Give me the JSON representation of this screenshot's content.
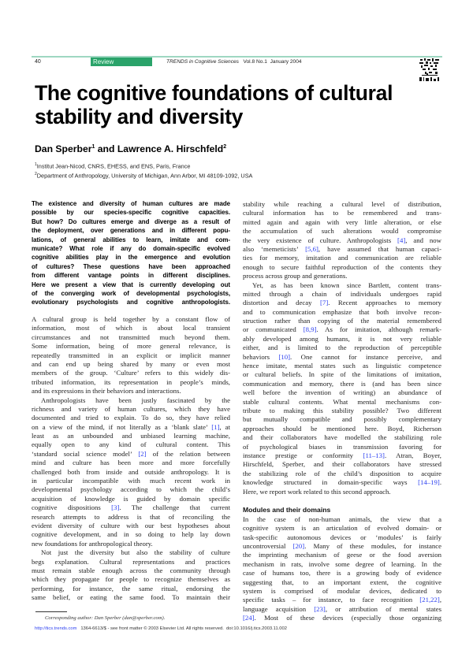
{
  "header": {
    "page_number": "40",
    "section_badge": "Review",
    "journal": "TRENDS in Cognitive Sciences",
    "issue": "Vol.8 No.1  January 2004",
    "accent_color": "#2aa36a",
    "rule_color": "#9ed7c1"
  },
  "article": {
    "title_line1": "The cognitive foundations of cultural",
    "title_line2": "stability and diversity",
    "author1": "Dan Sperber",
    "author1_mark": "1",
    "author_join": " and ",
    "author2": "Lawrence A. Hirschfeld",
    "author2_mark": "2",
    "affiliations": [
      {
        "mark": "1",
        "text": "Institut Jean-Nicod, CNRS, EHESS, and ENS, Paris, France"
      },
      {
        "mark": "2",
        "text": "Department of Anthropology, University of Michigan, Ann Arbor, MI 48109-1092, USA"
      }
    ]
  },
  "abstract": [
    "The existence and diversity of human cultures are made",
    "possible by our species-specific cognitive capacities.",
    "But how? Do cultures emerge and diverge as a result of",
    "the deployment, over generations and in different popu-",
    "lations, of general abilities to learn, imitate and com-",
    "municate? What role if any do domain-specific evolved",
    "cognitive abilities play in the emergence and evolution",
    "of cultures? These questions have been approached",
    "from different vantage points in different disciplines.",
    "Here we present a view that is currently developing out",
    "of the converging work of developmental psychologists,",
    "evolutionary psychologists and cognitive anthropologists."
  ],
  "left_column": [
    {
      "indent": false,
      "lines": [
        "A cultural group is held together by a constant flow of",
        "information, most of which is about local transient",
        "circumstances and not transmitted much beyond them.",
        "Some information, being of more general relevance, is",
        "repeatedly transmitted in an explicit or implicit manner",
        "and can end up being shared by many or even most",
        "members of the group. ‘Culture’ refers to this widely dis-",
        "tributed information, its representation in people’s minds,",
        "and its expressions in their behaviors and interactions."
      ]
    },
    {
      "indent": true,
      "lines": [
        "Anthropologists have been justly fascinated by the",
        "richness and variety of human cultures, which they have",
        "documented and tried to explain. To do so, they have relied",
        "on a view of the mind, if not literally as a ‘blank slate’ [1], at",
        "least as an unbounded and unbiased learning machine,",
        "equally open to any kind of cultural content. This",
        "‘standard social science model’ [2] of the relation between",
        "mind and culture has been more and more forcefully",
        "challenged both from inside and outside anthropology. It is",
        "in particular incompatible with much recent work in",
        "developmental psychology according to which the child’s",
        "acquisition of knowledge is guided by domain specific",
        "cognitive dispositions [3]. The challenge that current",
        "research attempts to address is that of reconciling the",
        "evident diversity of culture with our best hypotheses about",
        "cognitive development, and in so doing to help lay down",
        "new foundations for anthropological theory."
      ]
    },
    {
      "indent": true,
      "lines": [
        "Not just the diversity but also the stability of culture",
        "begs explanation. Cultural representations and practices",
        "must remain stable enough across the community through",
        "which they propagate for people to recognize themselves as",
        "performing, for instance, the same ritual, endorsing the",
        "same belief, or eating the same food. To maintain their"
      ],
      "continues": true
    }
  ],
  "right_column": [
    {
      "indent": false,
      "lines": [
        "stability while reaching a cultural level of distribution,",
        "cultural information has to be remembered and trans-",
        "mitted again and again with very little alteration, or else",
        "the accumulation of such alterations would compromise",
        "the very existence of culture. Anthropologists [4], and now",
        "also ‘memeticists’ [5,6], have assumed that human capaci-",
        "ties for memory, imitation and communication are reliable",
        "enough to secure faithful reproduction of the contents they",
        "process across group and generations."
      ]
    },
    {
      "indent": true,
      "lines": [
        "Yet, as has been known since Bartlett, content trans-",
        "mitted through a chain of individuals undergoes rapid",
        "distortion and decay [7]. Recent approaches to memory",
        "and to communication emphasize that both involve recon-",
        "struction rather than copying of the material remembered",
        "or communicated [8,9]. As for imitation, although remark-",
        "ably developed among humans, it is not very reliable",
        "either, and is limited to the reproduction of perceptible",
        "behaviors [10]. One cannot for instance perceive, and",
        "hence imitate, mental states such as linguistic competence",
        "or cultural beliefs. In spite of the limitations of imitation,",
        "communication and memory, there is (and has been since",
        "well before the invention of writing) an abundance of",
        "stable cultural contents. What mental mechanisms con-",
        "tribute to making this stability possible? Two different",
        "but mutually compatible and possibly complementary",
        "approaches should be mentioned here. Boyd, Richerson",
        "and their collaborators have modelled the stabilizing role",
        "of psychological biases in transmission favoring for",
        "instance prestige or conformity [11–13]. Atran, Boyer,",
        "Hirschfeld, Sperber, and their collaborators have stressed",
        "the stabilizing role of the child’s disposition to acquire",
        "knowledge structured in domain-specific ways [14–19].",
        "Here, we report work related to this second approach."
      ]
    }
  ],
  "section": {
    "heading": "Modules and their domains",
    "lines": [
      "In the case of non-human animals, the view that a",
      "cognitive system is an articulation of evolved domain- or",
      "task-specific autonomous devices or ‘modules’ is fairly",
      "uncontroversial [20]. Many of these modules, for instance",
      "the imprinting mechanism of geese or the food aversion",
      "mechanism in rats, involve some degree of learning. In the",
      "case of humans too, there is a growing body of evidence",
      "suggesting that, to an important extent, the cognitive",
      "system is comprised of modular devices, dedicated to",
      "specific tasks – for instance, to face recognition [21,22],",
      "language acquisition [23], or attribution of mental states",
      "[24]. Most of these devices (especially those organizing"
    ]
  },
  "footnote": {
    "corresponding_author": "Corresponding author: Dan Sperber (dan@sperber.com)."
  },
  "footer": {
    "url": "http://tics.trends.com",
    "rights": "1364-6613/$ - see front matter © 2003 Elsevier Ltd. All rights reserved.  doi:10.1016/j.tics.2003.11.002",
    "link_color": "#2b3ff0"
  }
}
